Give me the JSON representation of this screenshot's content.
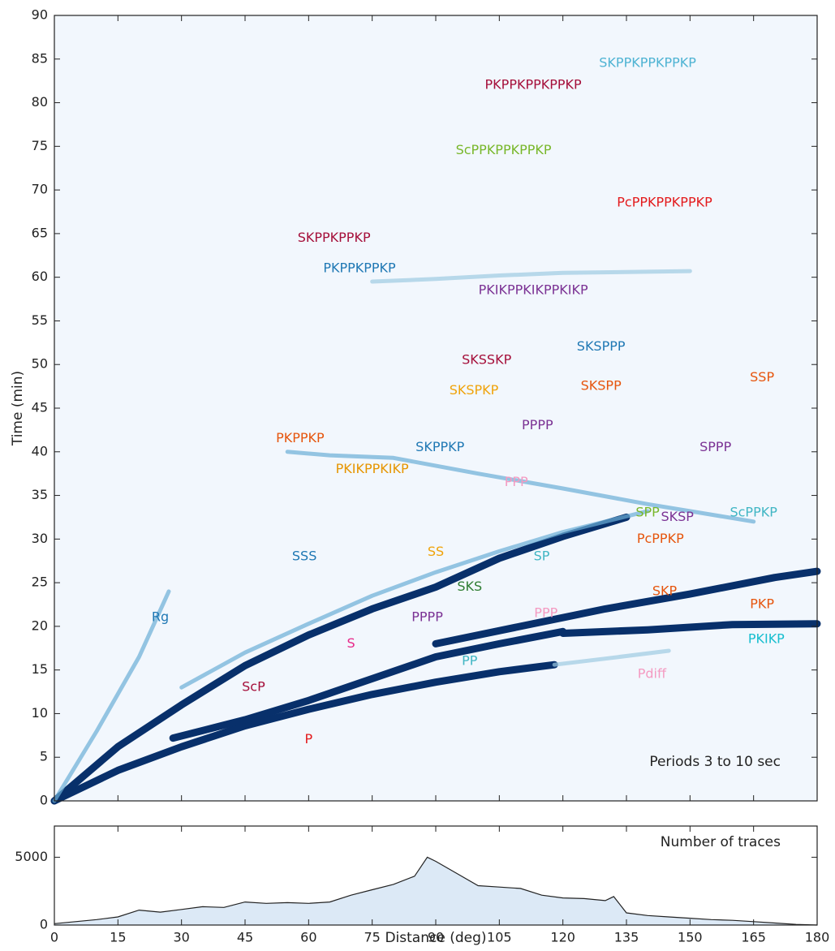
{
  "chart_data": [
    {
      "type": "line",
      "ylabel": "Time (min)",
      "xlim": [
        0,
        180
      ],
      "ylim": [
        0,
        90
      ],
      "xticks": [
        0,
        15,
        30,
        45,
        60,
        75,
        90,
        105,
        120,
        135,
        150,
        165,
        180
      ],
      "yticks": [
        0,
        5,
        10,
        15,
        20,
        25,
        30,
        35,
        40,
        45,
        50,
        55,
        60,
        65,
        70,
        75,
        80,
        85,
        90
      ],
      "background": "#f2f7fd",
      "series": [
        {
          "color": "#08306b",
          "x": [
            0,
            15,
            30,
            45,
            60,
            75,
            90,
            105,
            118
          ],
          "values": [
            0,
            3.5,
            6.2,
            8.6,
            10.5,
            12.2,
            13.6,
            14.8,
            15.6
          ]
        },
        {
          "color": "#9ecae1",
          "x": [
            118,
            130,
            145
          ],
          "values": [
            15.6,
            16.3,
            17.2
          ]
        },
        {
          "color": "#08306b",
          "x": [
            0,
            15,
            30,
            45,
            60,
            75,
            90,
            105,
            120,
            135
          ],
          "values": [
            0,
            6.2,
            11,
            15.5,
            19,
            22,
            24.5,
            27.8,
            30.3,
            32.5
          ]
        },
        {
          "color": "#08306b",
          "x": [
            28,
            45,
            60,
            75,
            90,
            105,
            120
          ],
          "values": [
            7.2,
            9.3,
            11.5,
            14,
            16.5,
            18,
            19.4
          ]
        },
        {
          "color": "#08306b",
          "x": [
            120,
            140,
            160,
            180
          ],
          "values": [
            19.2,
            19.6,
            20.2,
            20.3
          ]
        },
        {
          "color": "#08306b",
          "x": [
            90,
            110,
            130,
            150,
            170,
            180
          ],
          "values": [
            18,
            20,
            22,
            23.7,
            25.6,
            26.3
          ]
        },
        {
          "color": "#6baed6",
          "x": [
            30,
            45,
            60,
            75,
            90,
            105,
            120,
            140
          ],
          "values": [
            13,
            17,
            20.3,
            23.5,
            26.2,
            28.6,
            30.8,
            33.2
          ]
        },
        {
          "color": "#6baed6",
          "x": [
            0,
            10,
            20,
            27
          ],
          "values": [
            0,
            8,
            16.5,
            24
          ]
        },
        {
          "color": "#6baed6",
          "x": [
            55,
            65,
            80,
            100,
            120,
            140,
            165
          ],
          "values": [
            40,
            39.6,
            39.3,
            37.5,
            35.8,
            34,
            32
          ]
        },
        {
          "color": "#9ecae1",
          "x": [
            75,
            90,
            105,
            120,
            150
          ],
          "values": [
            59.5,
            59.8,
            60.2,
            60.5,
            60.7
          ]
        }
      ],
      "annotations": [
        {
          "text": "SKPPKPPKPPKP",
          "x": 140,
          "y": 84.5,
          "color": "#4eb3d3"
        },
        {
          "text": "PKPPKPPKPPKP",
          "x": 113,
          "y": 82,
          "color": "#a50f3a"
        },
        {
          "text": "ScPPKPPKPPKP",
          "x": 106,
          "y": 74.5,
          "color": "#78b72a"
        },
        {
          "text": "PcPPKPPKPPKP",
          "x": 144,
          "y": 68.5,
          "color": "#e31a1c"
        },
        {
          "text": "SKPPKPPKP",
          "x": 66,
          "y": 64.5,
          "color": "#a50f3a"
        },
        {
          "text": "PKPPKPPKP",
          "x": 72,
          "y": 61,
          "color": "#1f78b4"
        },
        {
          "text": "PKIKPPKIKPPKIKP",
          "x": 113,
          "y": 58.5,
          "color": "#7b3294"
        },
        {
          "text": "SKSPPP",
          "x": 129,
          "y": 52,
          "color": "#1f78b4"
        },
        {
          "text": "SKSSKP",
          "x": 102,
          "y": 50.5,
          "color": "#a50f3a"
        },
        {
          "text": "SKSPP",
          "x": 129,
          "y": 47.5,
          "color": "#e6550d"
        },
        {
          "text": "SSP",
          "x": 167,
          "y": 48.5,
          "color": "#e6550d"
        },
        {
          "text": "SKSPKP",
          "x": 99,
          "y": 47,
          "color": "#f0a30a"
        },
        {
          "text": "PPPP",
          "x": 114,
          "y": 43,
          "color": "#7b3294"
        },
        {
          "text": "SKPPKP",
          "x": 91,
          "y": 40.5,
          "color": "#1f78b4"
        },
        {
          "text": "PKPPKP",
          "x": 58,
          "y": 41.5,
          "color": "#e6550d"
        },
        {
          "text": "SPPP",
          "x": 156,
          "y": 40.5,
          "color": "#7b3294"
        },
        {
          "text": "PKIKPPKIKP",
          "x": 75,
          "y": 38,
          "color": "#e69500"
        },
        {
          "text": "PPP",
          "x": 109,
          "y": 36.5,
          "color": "#f49ac1"
        },
        {
          "text": "SPP",
          "x": 140,
          "y": 33,
          "color": "#78b72a"
        },
        {
          "text": "SKSP",
          "x": 147,
          "y": 32.5,
          "color": "#7b3294"
        },
        {
          "text": "ScPPKP",
          "x": 165,
          "y": 33,
          "color": "#41b6c4"
        },
        {
          "text": "PcPPKP",
          "x": 143,
          "y": 30,
          "color": "#e6550d"
        },
        {
          "text": "SSS",
          "x": 59,
          "y": 28,
          "color": "#1f78b4"
        },
        {
          "text": "SS",
          "x": 90,
          "y": 28.5,
          "color": "#f0a30a"
        },
        {
          "text": "SP",
          "x": 115,
          "y": 28,
          "color": "#41b6c4"
        },
        {
          "text": "SKS",
          "x": 98,
          "y": 24.5,
          "color": "#2e7d32"
        },
        {
          "text": "SKP",
          "x": 144,
          "y": 24,
          "color": "#e6550d"
        },
        {
          "text": "PKP",
          "x": 167,
          "y": 22.5,
          "color": "#e6550d"
        },
        {
          "text": "Rg",
          "x": 25,
          "y": 21,
          "color": "#1f78b4"
        },
        {
          "text": "PPPP",
          "x": 88,
          "y": 21,
          "color": "#7b3294"
        },
        {
          "text": "PPP",
          "x": 116,
          "y": 21.5,
          "color": "#f49ac1"
        },
        {
          "text": "S",
          "x": 70,
          "y": 18,
          "color": "#e7298a"
        },
        {
          "text": "PKIKP",
          "x": 168,
          "y": 18.5,
          "color": "#17becf"
        },
        {
          "text": "PP",
          "x": 98,
          "y": 16,
          "color": "#41b6c4"
        },
        {
          "text": "Pdiff",
          "x": 141,
          "y": 14.5,
          "color": "#f49ac1"
        },
        {
          "text": "ScP",
          "x": 47,
          "y": 13,
          "color": "#a50f3a"
        },
        {
          "text": "P",
          "x": 60,
          "y": 7,
          "color": "#e31a1c"
        }
      ],
      "note": "Periods 3 to 10 sec"
    },
    {
      "type": "area",
      "xlabel": "Distance (deg)",
      "note": "Number of traces",
      "xlim": [
        0,
        180
      ],
      "ylim": [
        0,
        7300
      ],
      "xticks": [
        0,
        15,
        30,
        45,
        60,
        75,
        90,
        105,
        120,
        135,
        150,
        165,
        180
      ],
      "yticks": [
        0,
        5000
      ],
      "color": "#dce9f6",
      "x": [
        0,
        5,
        10,
        15,
        20,
        25,
        30,
        35,
        40,
        45,
        50,
        55,
        60,
        65,
        70,
        75,
        80,
        85,
        88,
        90,
        95,
        100,
        105,
        110,
        115,
        120,
        125,
        130,
        132,
        135,
        140,
        145,
        150,
        155,
        160,
        165,
        170,
        175,
        180
      ],
      "values": [
        100,
        250,
        400,
        600,
        1100,
        950,
        1150,
        1350,
        1300,
        1700,
        1600,
        1650,
        1600,
        1700,
        2200,
        2600,
        3000,
        3600,
        5000,
        4700,
        3800,
        2900,
        2800,
        2700,
        2200,
        2000,
        1950,
        1800,
        2100,
        900,
        700,
        600,
        500,
        400,
        350,
        250,
        150,
        50,
        0
      ]
    }
  ]
}
